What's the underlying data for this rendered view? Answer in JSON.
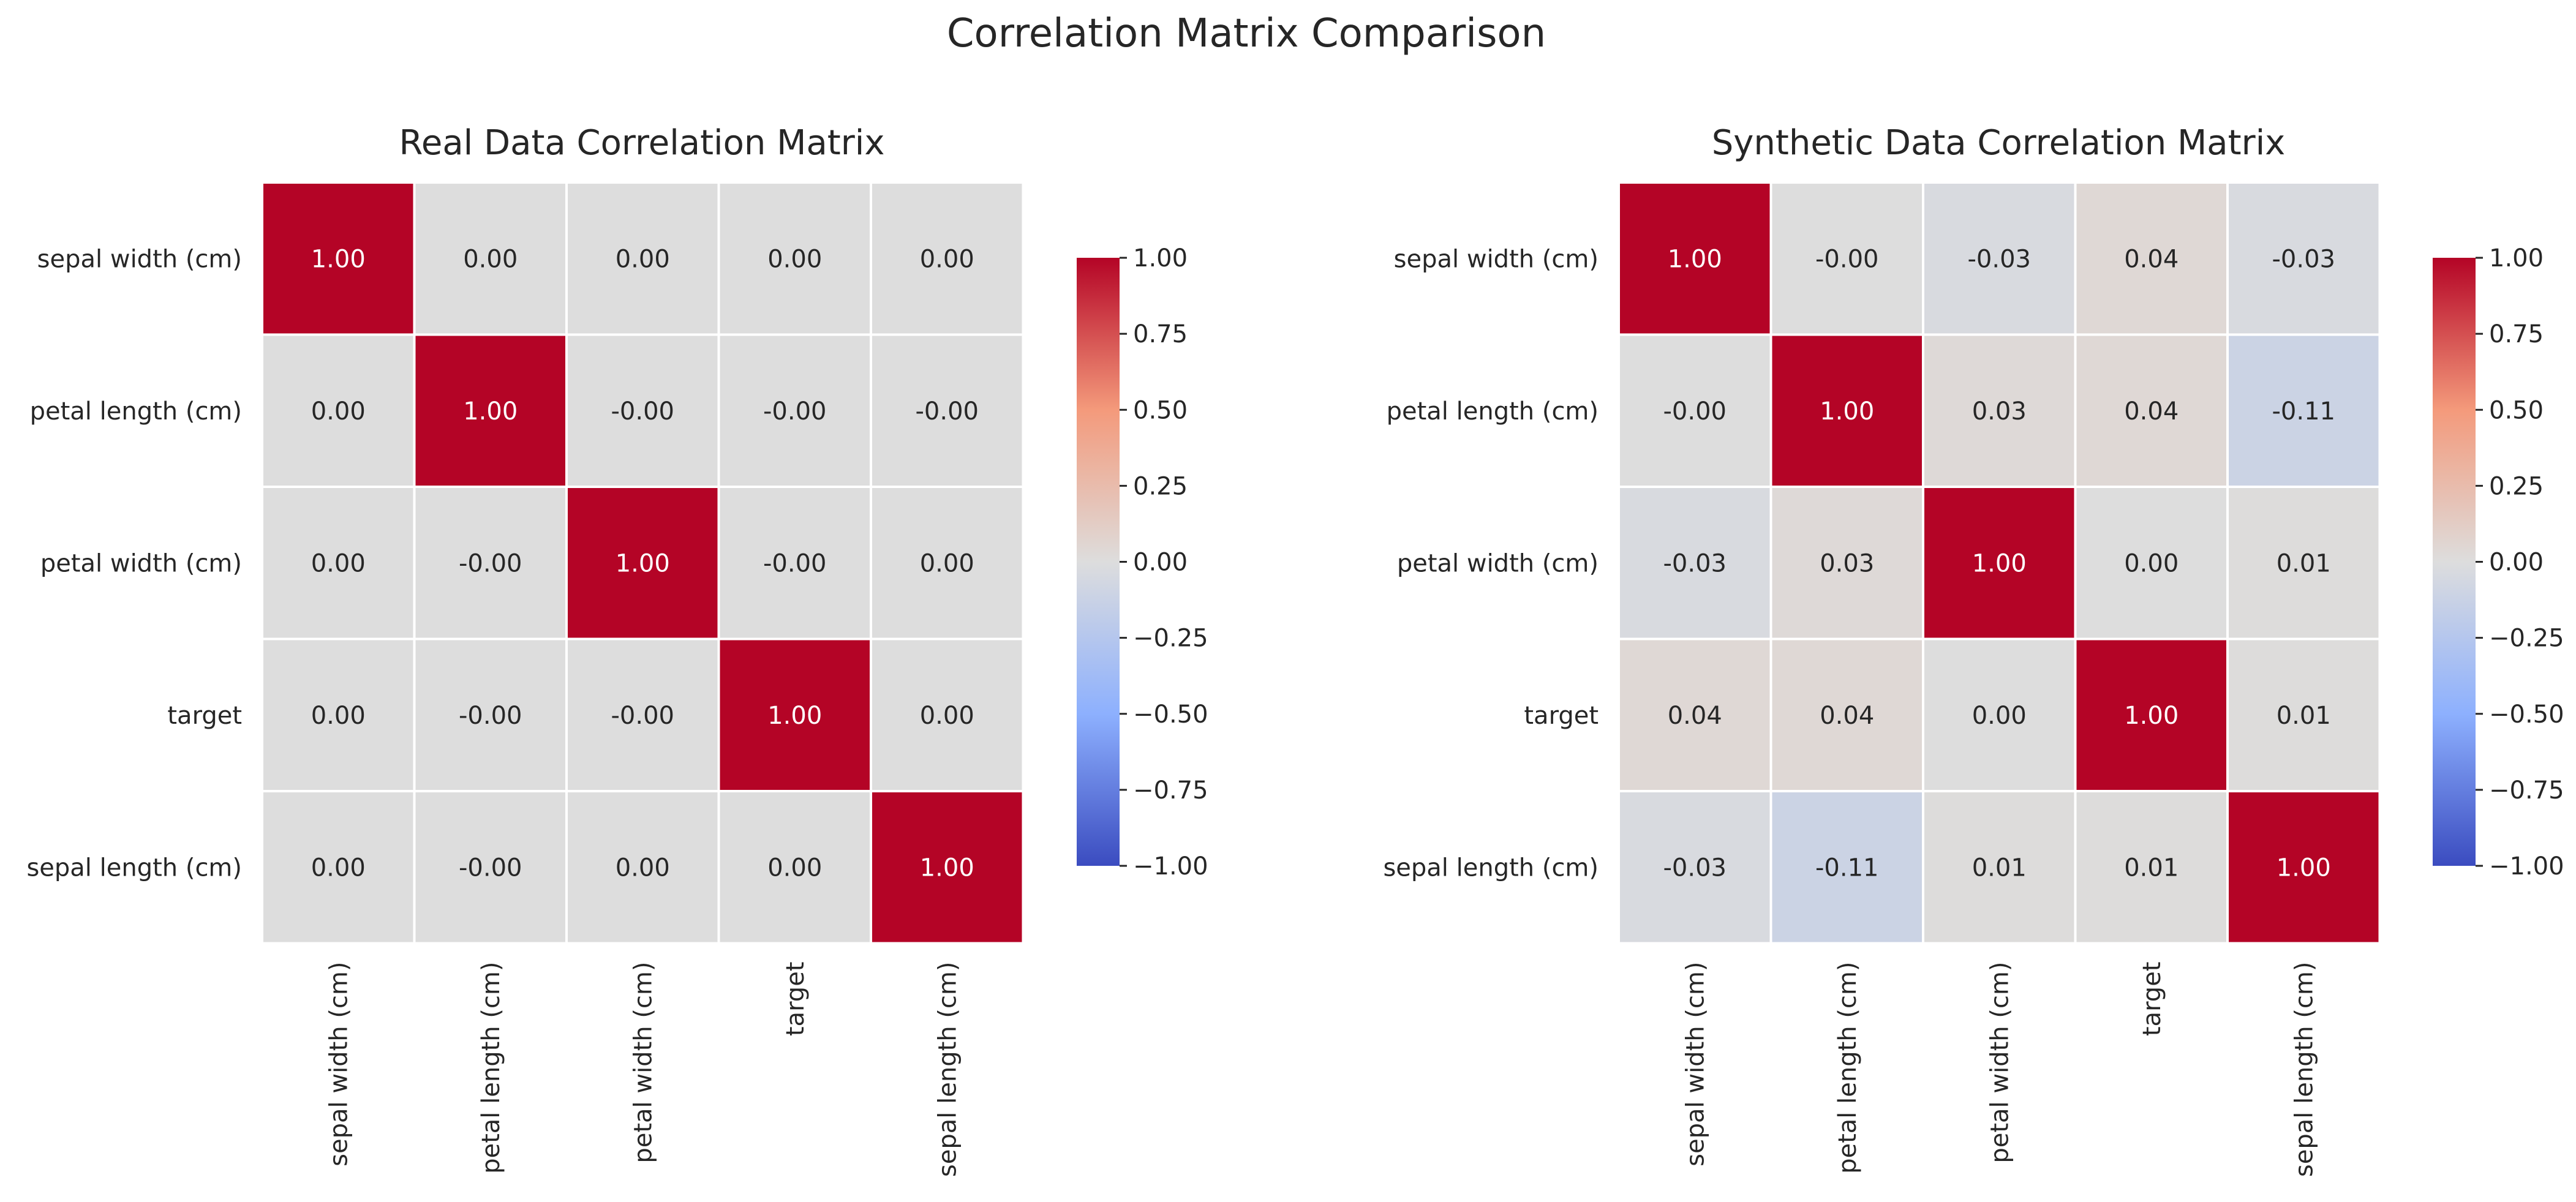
{
  "chart_data": {
    "type": "heatmap",
    "title": "Correlation Matrix Comparison",
    "colormap": "coolwarm",
    "colors": {
      "low": "#3b4cc0",
      "mid": "#dddddd",
      "high": "#b40426",
      "annot_dark": "#262626",
      "annot_light": "#ffffff",
      "grid": "#ffffff"
    },
    "panels": [
      {
        "title": "Real Data Correlation Matrix",
        "x_labels": [
          "sepal width (cm)",
          "petal length (cm)",
          "petal width (cm)",
          "target",
          "sepal length (cm)"
        ],
        "y_labels": [
          "sepal width (cm)",
          "petal length (cm)",
          "petal width (cm)",
          "target",
          "sepal length (cm)"
        ],
        "values": [
          [
            1.0,
            0.0,
            0.0,
            0.0,
            0.0
          ],
          [
            0.0,
            1.0,
            -0.0,
            -0.0,
            -0.0
          ],
          [
            0.0,
            -0.0,
            1.0,
            -0.0,
            0.0
          ],
          [
            0.0,
            -0.0,
            -0.0,
            1.0,
            0.0
          ],
          [
            0.0,
            -0.0,
            0.0,
            0.0,
            1.0
          ]
        ],
        "annotations": [
          [
            "1.00",
            "0.00",
            "0.00",
            "0.00",
            "0.00"
          ],
          [
            "0.00",
            "1.00",
            "-0.00",
            "-0.00",
            "-0.00"
          ],
          [
            "0.00",
            "-0.00",
            "1.00",
            "-0.00",
            "0.00"
          ],
          [
            "0.00",
            "-0.00",
            "-0.00",
            "1.00",
            "0.00"
          ],
          [
            "0.00",
            "-0.00",
            "0.00",
            "0.00",
            "1.00"
          ]
        ],
        "vmin": -1.0,
        "vmax": 1.0,
        "colorbar_ticks": [
          "−1.00",
          "−0.75",
          "−0.50",
          "−0.25",
          "0.00",
          "0.25",
          "0.50",
          "0.75",
          "1.00"
        ]
      },
      {
        "title": "Synthetic Data Correlation Matrix",
        "x_labels": [
          "sepal width (cm)",
          "petal length (cm)",
          "petal width (cm)",
          "target",
          "sepal length (cm)"
        ],
        "y_labels": [
          "sepal width (cm)",
          "petal length (cm)",
          "petal width (cm)",
          "target",
          "sepal length (cm)"
        ],
        "values": [
          [
            1.0,
            -0.0,
            -0.03,
            0.04,
            -0.03
          ],
          [
            -0.0,
            1.0,
            0.03,
            0.04,
            -0.11
          ],
          [
            -0.03,
            0.03,
            1.0,
            0.0,
            0.01
          ],
          [
            0.04,
            0.04,
            0.0,
            1.0,
            0.01
          ],
          [
            -0.03,
            -0.11,
            0.01,
            0.01,
            1.0
          ]
        ],
        "annotations": [
          [
            "1.00",
            "-0.00",
            "-0.03",
            "0.04",
            "-0.03"
          ],
          [
            "-0.00",
            "1.00",
            "0.03",
            "0.04",
            "-0.11"
          ],
          [
            "-0.03",
            "0.03",
            "1.00",
            "0.00",
            "0.01"
          ],
          [
            "0.04",
            "0.04",
            "0.00",
            "1.00",
            "0.01"
          ],
          [
            "-0.03",
            "-0.11",
            "0.01",
            "0.01",
            "1.00"
          ]
        ],
        "vmin": -1.0,
        "vmax": 1.0,
        "colorbar_ticks": [
          "−1.00",
          "−0.75",
          "−0.50",
          "−0.25",
          "0.00",
          "0.25",
          "0.50",
          "0.75",
          "1.00"
        ]
      }
    ]
  }
}
